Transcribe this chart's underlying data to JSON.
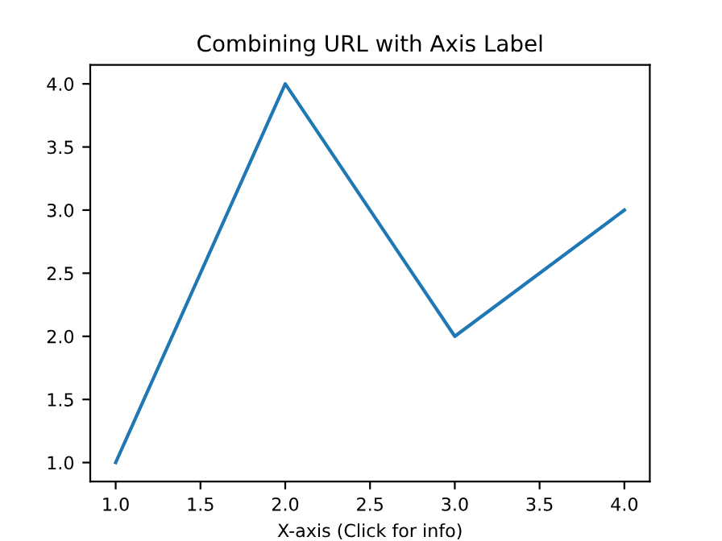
{
  "chart_data": {
    "type": "line",
    "title": "Combining URL with Axis Label",
    "xlabel": "X-axis (Click for info)",
    "x": [
      1,
      2,
      3,
      4
    ],
    "series": [
      {
        "color": "#1f77b4",
        "values": [
          1,
          4,
          2,
          3
        ]
      }
    ],
    "xlim": [
      0.85,
      4.15
    ],
    "ylim": [
      0.85,
      4.15
    ],
    "xticks": [
      {
        "value": 1,
        "label": "1.0"
      },
      {
        "value": 1.5,
        "label": "1.5"
      },
      {
        "value": 2,
        "label": "2.0"
      },
      {
        "value": 2.5,
        "label": "2.5"
      },
      {
        "value": 3,
        "label": "3.0"
      },
      {
        "value": 3.5,
        "label": "3.5"
      },
      {
        "value": 4,
        "label": "4.0"
      }
    ],
    "yticks": [
      {
        "value": 1,
        "label": "1.0"
      },
      {
        "value": 1.5,
        "label": "1.5"
      },
      {
        "value": 2,
        "label": "2.0"
      },
      {
        "value": 2.5,
        "label": "2.5"
      },
      {
        "value": 3,
        "label": "3.0"
      },
      {
        "value": 3.5,
        "label": "3.5"
      },
      {
        "value": 4,
        "label": "4.0"
      }
    ],
    "grid": false,
    "marker": "none",
    "line_style": "solid"
  }
}
